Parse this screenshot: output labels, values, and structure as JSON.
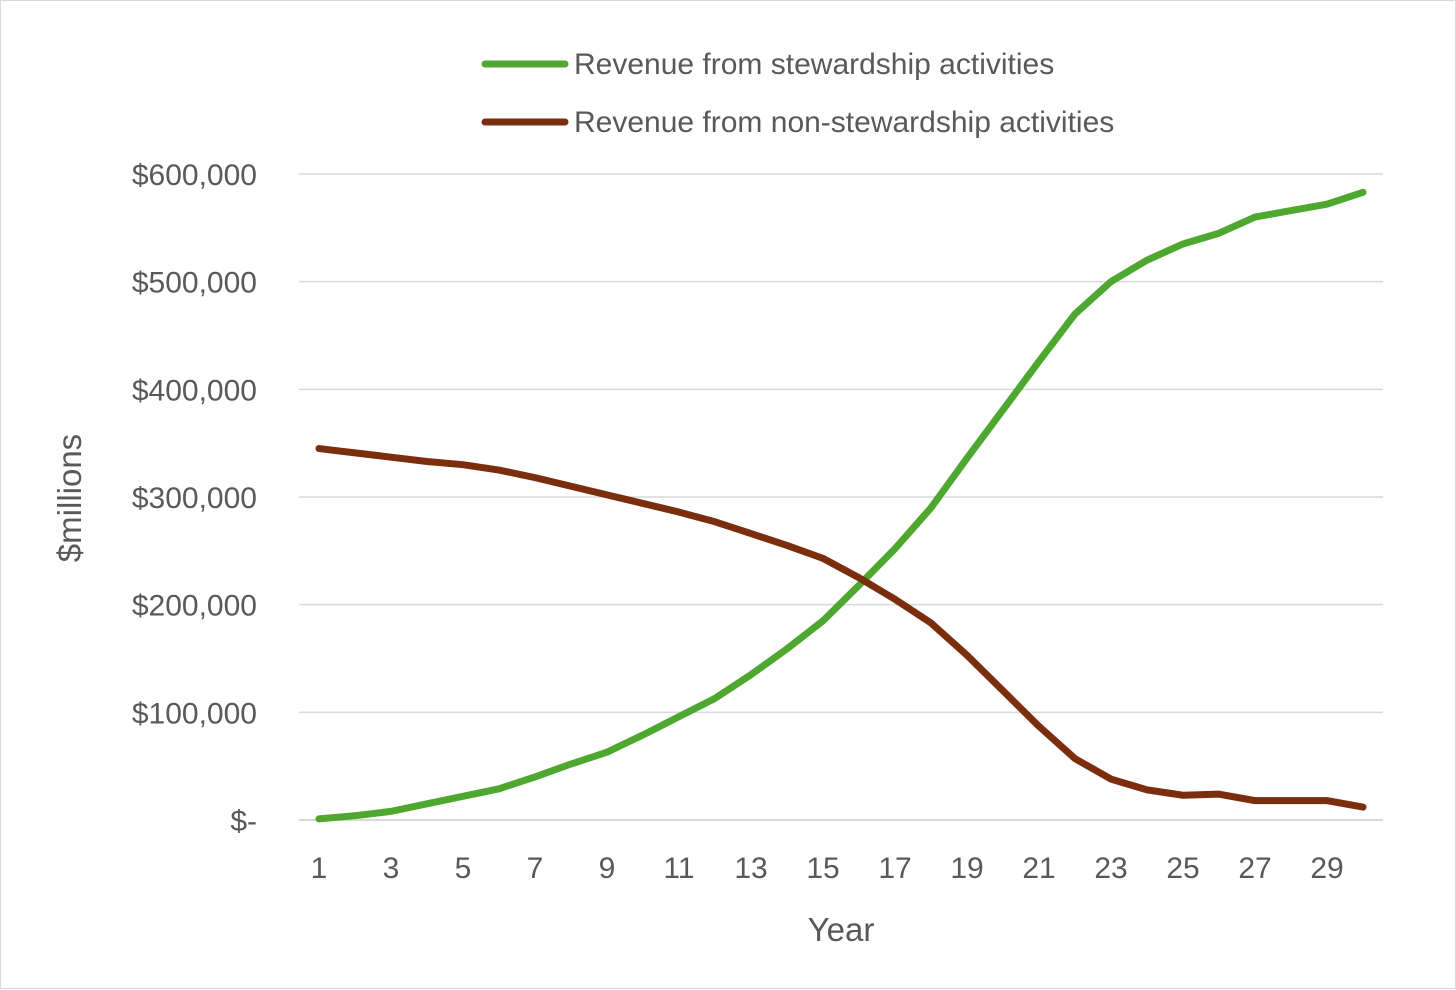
{
  "chart_data": {
    "type": "line",
    "xlabel": "Year",
    "ylabel": "$millions",
    "x": [
      1,
      2,
      3,
      4,
      5,
      6,
      7,
      8,
      9,
      10,
      11,
      12,
      13,
      14,
      15,
      16,
      17,
      18,
      19,
      20,
      21,
      22,
      23,
      24,
      25,
      26,
      27,
      28,
      29,
      30
    ],
    "x_tick_labels": [
      "1",
      "3",
      "5",
      "7",
      "9",
      "11",
      "13",
      "15",
      "17",
      "19",
      "21",
      "23",
      "25",
      "27",
      "29"
    ],
    "ylim": [
      0,
      600000
    ],
    "y_ticks": [
      0,
      100000,
      200000,
      300000,
      400000,
      500000,
      600000
    ],
    "y_tick_labels": [
      "$-",
      "$100,000",
      "$200,000",
      "$300,000",
      "$400,000",
      "$500,000",
      "$600,000"
    ],
    "grid": "horizontal",
    "legend_position": "top",
    "series": [
      {
        "name": "Revenue from stewardship activities",
        "color": "#4ea72e",
        "values": [
          1000,
          4000,
          8000,
          15000,
          22000,
          29000,
          40000,
          52000,
          63000,
          79000,
          96000,
          113000,
          135000,
          159000,
          185000,
          218000,
          252000,
          290000,
          336000,
          381000,
          426000,
          470000,
          500000,
          520000,
          535000,
          545000,
          560000,
          566000,
          572000,
          583000
        ]
      },
      {
        "name": "Revenue from non-stewardship activities",
        "color": "#7b2e0e",
        "values": [
          345000,
          341000,
          337000,
          333000,
          330000,
          325000,
          318000,
          310000,
          302000,
          294000,
          286000,
          277000,
          266000,
          255000,
          243000,
          225000,
          205000,
          183000,
          153000,
          120000,
          87000,
          57000,
          38000,
          28000,
          23000,
          24000,
          18000,
          18000,
          18000,
          12000
        ]
      }
    ]
  }
}
